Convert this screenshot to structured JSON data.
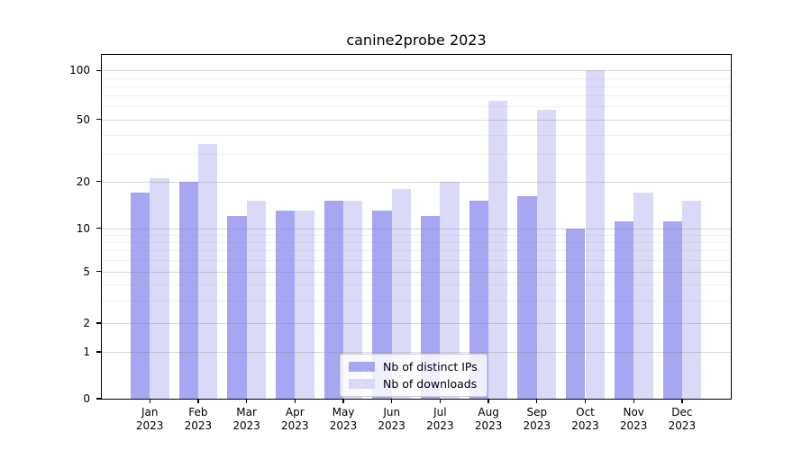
{
  "title": "canine2probe 2023",
  "chart_data": {
    "type": "bar",
    "categories": [
      "Jan 2023",
      "Feb 2023",
      "Mar 2023",
      "Apr 2023",
      "May 2023",
      "Jun 2023",
      "Jul 2023",
      "Aug 2023",
      "Sep 2023",
      "Oct 2023",
      "Nov 2023",
      "Dec 2023"
    ],
    "series": [
      {
        "name": "Nb of distinct IPs",
        "color": "#a6a6f2",
        "values": [
          17,
          20,
          12,
          13,
          15,
          13,
          12,
          15,
          16,
          10,
          11,
          11
        ]
      },
      {
        "name": "Nb of downloads",
        "color": "#dadaf8",
        "values": [
          21,
          35,
          15,
          13,
          15,
          18,
          20,
          65,
          57,
          100,
          17,
          15
        ]
      }
    ],
    "title": "canine2probe 2023",
    "xlabel": "",
    "ylabel": "",
    "yscale": "symlog",
    "ylim": [
      0,
      126
    ],
    "y_ticks": [
      0,
      1,
      2,
      5,
      10,
      20,
      50,
      100
    ],
    "grid": true,
    "legend_position": "lower center"
  }
}
